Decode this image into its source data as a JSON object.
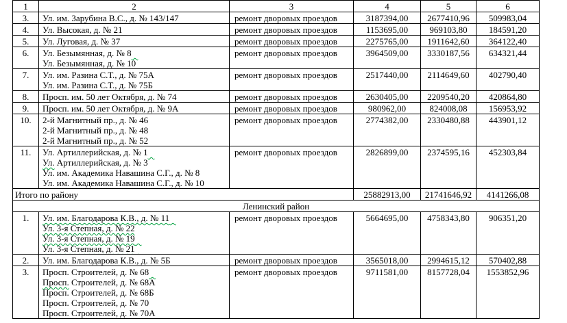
{
  "table": {
    "column_headers": [
      "1",
      "2",
      "3",
      "4",
      "5",
      "6"
    ],
    "rows": [
      {
        "kind": "item",
        "num": "3.",
        "lines": [
          {
            "t": "Ул. им. Зарубина В.С., д. № 143/147"
          }
        ],
        "work": "ремонт дворовых проездов",
        "v4": "3187394,00",
        "v5": "2677410,96",
        "v6": "509983,04"
      },
      {
        "kind": "item",
        "num": "4.",
        "lines": [
          {
            "t": "Ул. Высокая, д. № 21"
          }
        ],
        "work": "ремонт дворовых проездов",
        "v4": "1153695,00",
        "v5": "969103,80",
        "v6": "184591,20"
      },
      {
        "kind": "item",
        "num": "5.",
        "lines": [
          {
            "t": "Ул. Луговая, д. № 37"
          }
        ],
        "work": "ремонт дворовых проездов",
        "v4": "2275765,00",
        "v5": "1911642,60",
        "v6": "364122,40"
      },
      {
        "kind": "item",
        "num": "6.",
        "lines": [
          {
            "t": "Ул. Безымянная, д. № 8",
            "tail": true
          },
          {
            "t": "Ул. Безымянная, д. № 10",
            "sq_first": true
          }
        ],
        "work": "ремонт дворовых проездов",
        "v4": "3964509,00",
        "v5": "3330187,56",
        "v6": "634321,44"
      },
      {
        "kind": "item",
        "num": "7.",
        "lines": [
          {
            "t": "Ул. им. Разина С.Т., д. № 75А"
          },
          {
            "t": "Ул. им. Разина С.Т., д. № 75Б"
          }
        ],
        "work": "ремонт дворовых проездов",
        "v4": "2517440,00",
        "v5": "2114649,60",
        "v6": "402790,40"
      },
      {
        "kind": "item",
        "num": "8.",
        "lines": [
          {
            "t": "Просп. им. 50 лет Октября, д. № 74"
          }
        ],
        "work": "ремонт дворовых проездов",
        "v4": "2630405,00",
        "v5": "2209540,20",
        "v6": "420864,80"
      },
      {
        "kind": "item",
        "num": "9.",
        "lines": [
          {
            "t": "Просп. им. 50 лет Октября, д. № 9А"
          }
        ],
        "work": "ремонт дворовых проездов",
        "v4": "980962,00",
        "v5": "824008,08",
        "v6": "156953,92"
      },
      {
        "kind": "item",
        "num": "10.",
        "lines": [
          {
            "t": "2-й Магнитный пр., д. № 46"
          },
          {
            "t": "2-й Магнитный пр., д. № 48"
          },
          {
            "t": "2-й Магнитный пр., д. № 52"
          }
        ],
        "work": "ремонт дворовых проездов",
        "v4": "2774382,00",
        "v5": "2330480,88",
        "v6": "443901,12"
      },
      {
        "kind": "item",
        "num": "11.",
        "lines": [
          {
            "t": "Ул. Артиллерийская, д. № 1",
            "tail": true
          },
          {
            "t": "Ул. Артиллерийская, д. № 3",
            "sq_first": true
          },
          {
            "t": "Ул. им. Академика Навашина С.Г., д. № 8"
          },
          {
            "t": "Ул. им. Академика Навашина С.Г., д. № 10"
          }
        ],
        "work": "ремонт дворовых проездов",
        "v4": "2826899,00",
        "v5": "2374595,16",
        "v6": "452303,84"
      },
      {
        "kind": "total",
        "label": "Итого по району",
        "v4": "25882913,00",
        "v5": "21741646,92",
        "v6": "4141266,08"
      },
      {
        "kind": "section",
        "label": "Ленинский район"
      },
      {
        "kind": "item",
        "num": "1.",
        "lines": [
          {
            "t": "Ул. им. Благодарова К.В., д. № 11",
            "sq_full": true,
            "tail": true
          },
          {
            "t": "Ул. 3-я Степная, д. № 22",
            "sq_full": true
          },
          {
            "t": "Ул. 3-я Степная, д. № 19",
            "sq_full": true,
            "tail": true
          },
          {
            "t": "Ул. 3-я Степная, д. № 21",
            "sq_full": true,
            "tail": true
          }
        ],
        "work": "ремонт дворовых проездов",
        "v4": "5664695,00",
        "v5": "4758343,80",
        "v6": "906351,20"
      },
      {
        "kind": "item",
        "num": "2.",
        "lines": [
          {
            "t": "Ул. им. Благодарова К.В., д. № 5Б"
          }
        ],
        "work": "ремонт дворовых проездов",
        "v4": "3565018,00",
        "v5": "2994615,12",
        "v6": "570402,88"
      },
      {
        "kind": "item",
        "num": "3.",
        "lines": [
          {
            "t": "Просп. Строителей, д. № 68",
            "tail": true
          },
          {
            "t": "Просп. Строителей, д. № 68А",
            "sq_first": true
          },
          {
            "t": "Просп. Строителей, д. № 68Б"
          },
          {
            "t": "Просп. Строителей, д. № 70"
          },
          {
            "t": "Просп. Строителей, д. № 70А"
          }
        ],
        "work": "ремонт дворовых проездов",
        "v4": "9711581,00",
        "v5": "8157728,04",
        "v6": "1553852,96"
      }
    ],
    "squiggle_color": "#00a03c"
  }
}
